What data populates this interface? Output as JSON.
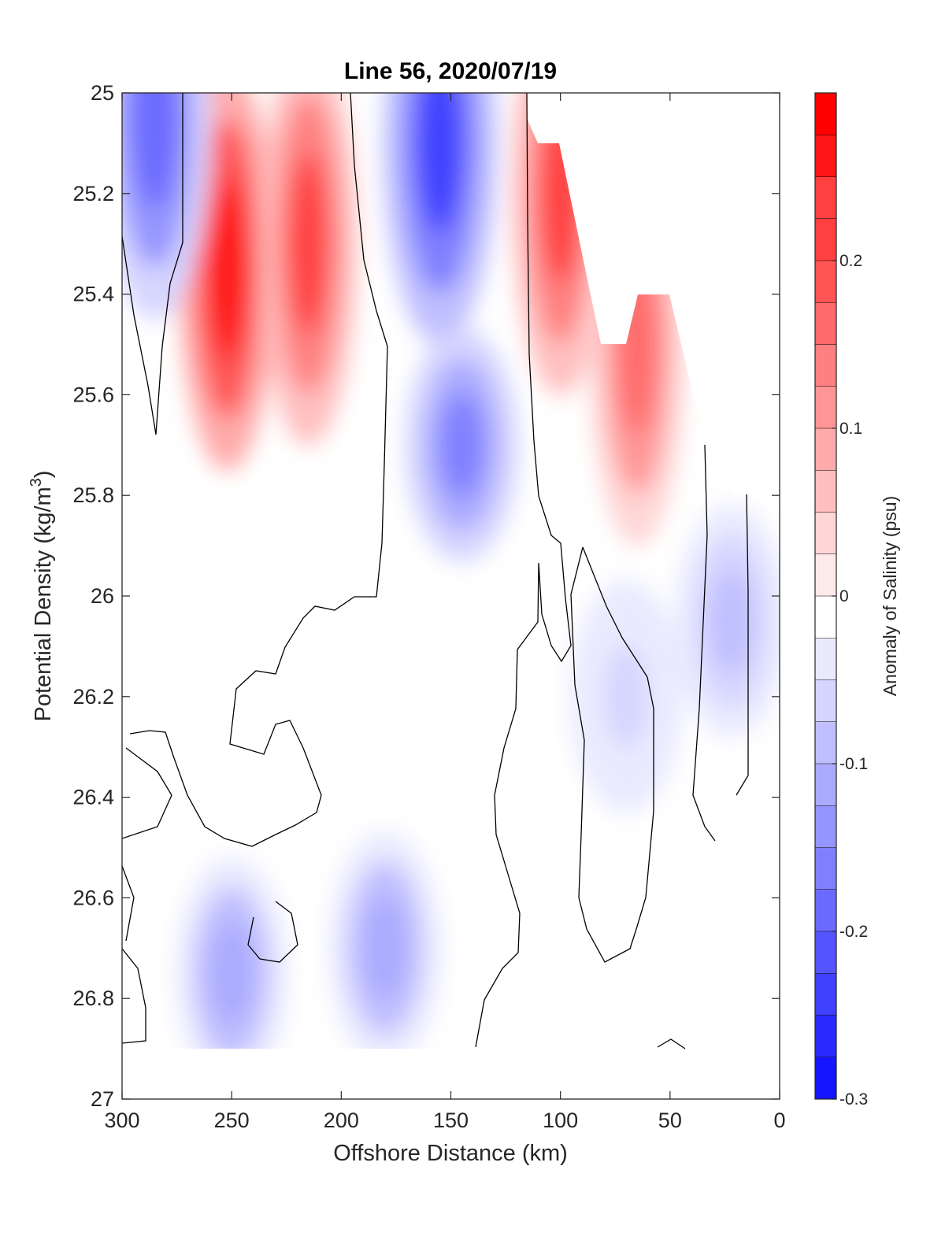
{
  "chart_data": {
    "type": "heatmap",
    "subtype": "filled-contour-section",
    "title": "Line 56, 2020/07/19",
    "xlabel": "Offshore Distance (km)",
    "ylabel_main": "Potential Density (kg/m",
    "ylabel_sup": "3",
    "ylabel_close": ")",
    "xlim": [
      300,
      0
    ],
    "ylim": [
      25,
      27
    ],
    "y_reversed": true,
    "x_ticks": [
      "300",
      "250",
      "200",
      "150",
      "100",
      "50",
      "0"
    ],
    "y_ticks": [
      "25",
      "25.2",
      "25.4",
      "25.6",
      "25.8",
      "26",
      "26.2",
      "26.4",
      "26.6",
      "26.8",
      "27"
    ],
    "x_tick_values": [
      300,
      250,
      200,
      150,
      100,
      50,
      0
    ],
    "y_tick_values": [
      25,
      25.2,
      25.4,
      25.6,
      25.8,
      26,
      26.2,
      26.4,
      26.6,
      26.8,
      27
    ],
    "data_extent": {
      "x_range": [
        300,
        0
      ],
      "y_range": [
        25,
        26.9
      ]
    },
    "colorbar": {
      "label": "Anomaly of Salinity (psu)",
      "range": [
        -0.3,
        0.3
      ],
      "levels_step": 0.025,
      "ticks": [
        "-0.3",
        "-0.2",
        "-0.1",
        "0",
        "0.1",
        "0.2"
      ],
      "tick_values": [
        -0.3,
        -0.2,
        -0.1,
        0,
        0.1,
        0.2
      ],
      "low_color": "#0000ff",
      "mid_color": "#ffffff",
      "high_color": "#ff0000"
    },
    "zero_contour_color": "#000000",
    "features": [
      {
        "kind": "high",
        "x": 252,
        "y": 25.35,
        "value": 0.28
      },
      {
        "kind": "high",
        "x": 215,
        "y": 25.3,
        "value": 0.22
      },
      {
        "kind": "high",
        "x": 100,
        "y": 25.2,
        "value": 0.23
      },
      {
        "kind": "high",
        "x": 65,
        "y": 25.5,
        "value": 0.17
      },
      {
        "kind": "low",
        "x": 155,
        "y": 25.1,
        "value": -0.22
      },
      {
        "kind": "low",
        "x": 145,
        "y": 25.7,
        "value": -0.15
      },
      {
        "kind": "low",
        "x": 285,
        "y": 25.05,
        "value": -0.17
      },
      {
        "kind": "low",
        "x": 250,
        "y": 26.75,
        "value": -0.09
      },
      {
        "kind": "low",
        "x": 180,
        "y": 26.7,
        "value": -0.09
      },
      {
        "kind": "low",
        "x": 22,
        "y": 26.05,
        "value": -0.08
      },
      {
        "kind": "low",
        "x": 70,
        "y": 26.2,
        "value": -0.04
      }
    ]
  }
}
